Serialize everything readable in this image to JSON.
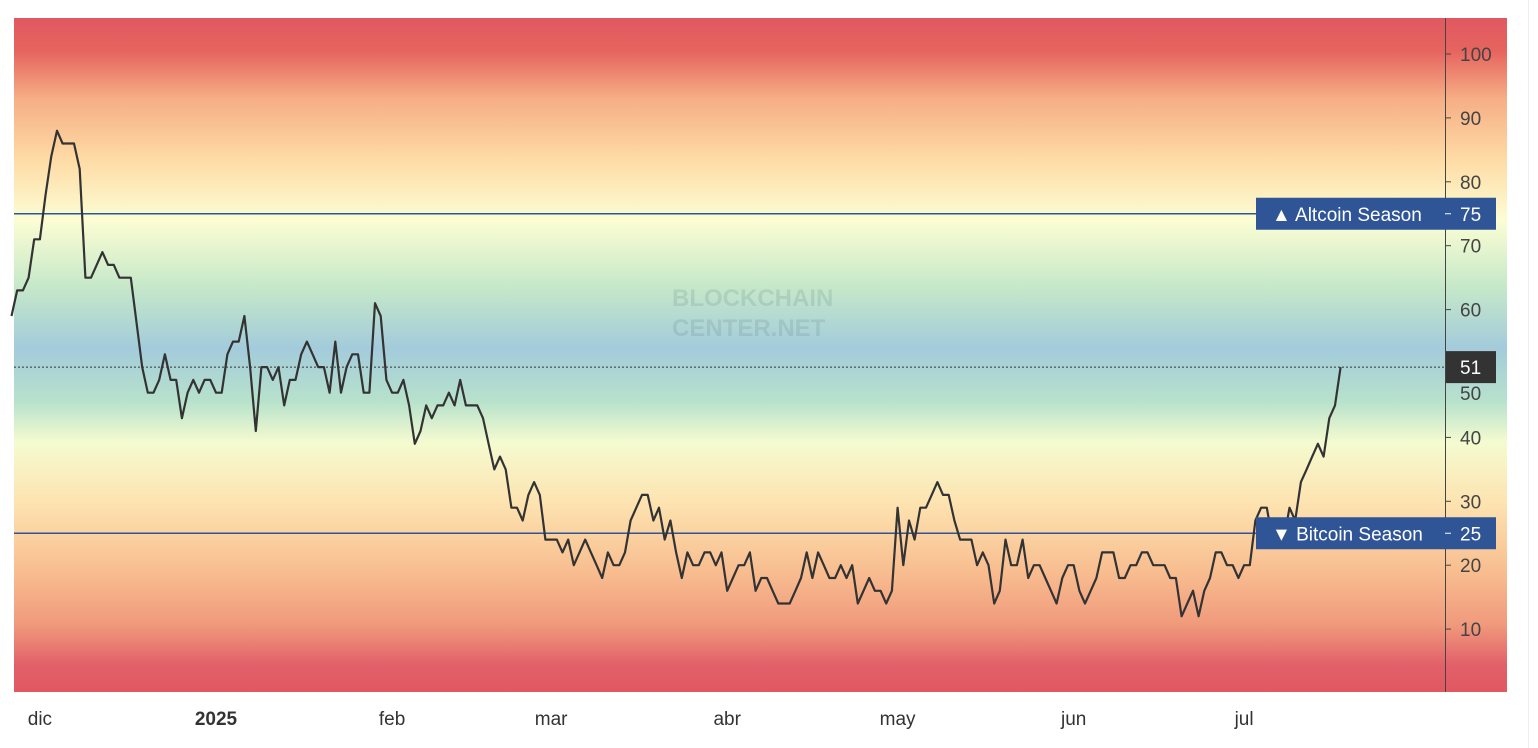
{
  "chart_data": {
    "type": "line",
    "title": "",
    "xlabel": "",
    "ylabel": "",
    "ylim": [
      0,
      105
    ],
    "y_ticks": [
      10,
      20,
      30,
      40,
      50,
      60,
      70,
      80,
      90,
      100
    ],
    "y_tick_labels": [
      "10",
      "20",
      "30",
      "40",
      "50",
      "60",
      "70",
      "80",
      "90",
      "100"
    ],
    "x_ticks": [
      {
        "date": "2024-12-01",
        "label": "dic",
        "bold": false
      },
      {
        "date": "2025-01-01",
        "label": "2025",
        "bold": true
      },
      {
        "date": "2025-02-01",
        "label": "feb",
        "bold": false
      },
      {
        "date": "2025-03-01",
        "label": "mar",
        "bold": false
      },
      {
        "date": "2025-04-01",
        "label": "abr",
        "bold": false
      },
      {
        "date": "2025-05-01",
        "label": "may",
        "bold": false
      },
      {
        "date": "2025-06-01",
        "label": "jun",
        "bold": false
      },
      {
        "date": "2025-07-01",
        "label": "jul",
        "bold": false
      }
    ],
    "grid": false,
    "background": "red-yellow-green-blue gradient bands",
    "reference_lines": [
      {
        "value": 75,
        "label": "▲ Altcoin Season",
        "value_label": "75",
        "color": "#2f5597"
      },
      {
        "value": 25,
        "label": "▼ Bitcoin Season",
        "value_label": "25",
        "color": "#2f5597"
      }
    ],
    "current_value": {
      "value": 51,
      "label": "51",
      "color": "#333333"
    },
    "line_color": "#333333",
    "watermark": "BLOCKCHAIN CENTER.NET",
    "points": [
      [
        "2024-11-26",
        59
      ],
      [
        "2024-11-27",
        63
      ],
      [
        "2024-11-28",
        63
      ],
      [
        "2024-11-29",
        65
      ],
      [
        "2024-11-30",
        71
      ],
      [
        "2024-12-01",
        71
      ],
      [
        "2024-12-02",
        78
      ],
      [
        "2024-12-03",
        84
      ],
      [
        "2024-12-04",
        88
      ],
      [
        "2024-12-05",
        86
      ],
      [
        "2024-12-06",
        86
      ],
      [
        "2024-12-07",
        86
      ],
      [
        "2024-12-08",
        82
      ],
      [
        "2024-12-09",
        65
      ],
      [
        "2024-12-10",
        65
      ],
      [
        "2024-12-11",
        67
      ],
      [
        "2024-12-12",
        69
      ],
      [
        "2024-12-13",
        67
      ],
      [
        "2024-12-14",
        67
      ],
      [
        "2024-12-15",
        65
      ],
      [
        "2024-12-16",
        65
      ],
      [
        "2024-12-17",
        65
      ],
      [
        "2024-12-18",
        58
      ],
      [
        "2024-12-19",
        51
      ],
      [
        "2024-12-20",
        47
      ],
      [
        "2024-12-21",
        47
      ],
      [
        "2024-12-22",
        49
      ],
      [
        "2024-12-23",
        53
      ],
      [
        "2024-12-24",
        49
      ],
      [
        "2024-12-25",
        49
      ],
      [
        "2024-12-26",
        43
      ],
      [
        "2024-12-27",
        47
      ],
      [
        "2024-12-28",
        49
      ],
      [
        "2024-12-29",
        47
      ],
      [
        "2024-12-30",
        49
      ],
      [
        "2024-12-31",
        49
      ],
      [
        "2025-01-01",
        47
      ],
      [
        "2025-01-02",
        47
      ],
      [
        "2025-01-03",
        53
      ],
      [
        "2025-01-04",
        55
      ],
      [
        "2025-01-05",
        55
      ],
      [
        "2025-01-06",
        59
      ],
      [
        "2025-01-07",
        51
      ],
      [
        "2025-01-08",
        41
      ],
      [
        "2025-01-09",
        51
      ],
      [
        "2025-01-10",
        51
      ],
      [
        "2025-01-11",
        49
      ],
      [
        "2025-01-12",
        51
      ],
      [
        "2025-01-13",
        45
      ],
      [
        "2025-01-14",
        49
      ],
      [
        "2025-01-15",
        49
      ],
      [
        "2025-01-16",
        53
      ],
      [
        "2025-01-17",
        55
      ],
      [
        "2025-01-18",
        53
      ],
      [
        "2025-01-19",
        51
      ],
      [
        "2025-01-20",
        51
      ],
      [
        "2025-01-21",
        47
      ],
      [
        "2025-01-22",
        55
      ],
      [
        "2025-01-23",
        47
      ],
      [
        "2025-01-24",
        51
      ],
      [
        "2025-01-25",
        53
      ],
      [
        "2025-01-26",
        53
      ],
      [
        "2025-01-27",
        47
      ],
      [
        "2025-01-28",
        47
      ],
      [
        "2025-01-29",
        61
      ],
      [
        "2025-01-30",
        59
      ],
      [
        "2025-01-31",
        49
      ],
      [
        "2025-02-01",
        47
      ],
      [
        "2025-02-02",
        47
      ],
      [
        "2025-02-03",
        49
      ],
      [
        "2025-02-04",
        45
      ],
      [
        "2025-02-05",
        39
      ],
      [
        "2025-02-06",
        41
      ],
      [
        "2025-02-07",
        45
      ],
      [
        "2025-02-08",
        43
      ],
      [
        "2025-02-09",
        45
      ],
      [
        "2025-02-10",
        45
      ],
      [
        "2025-02-11",
        47
      ],
      [
        "2025-02-12",
        45
      ],
      [
        "2025-02-13",
        49
      ],
      [
        "2025-02-14",
        45
      ],
      [
        "2025-02-15",
        45
      ],
      [
        "2025-02-16",
        45
      ],
      [
        "2025-02-17",
        43
      ],
      [
        "2025-02-18",
        39
      ],
      [
        "2025-02-19",
        35
      ],
      [
        "2025-02-20",
        37
      ],
      [
        "2025-02-21",
        35
      ],
      [
        "2025-02-22",
        29
      ],
      [
        "2025-02-23",
        29
      ],
      [
        "2025-02-24",
        27
      ],
      [
        "2025-02-25",
        31
      ],
      [
        "2025-02-26",
        33
      ],
      [
        "2025-02-27",
        31
      ],
      [
        "2025-02-28",
        24
      ],
      [
        "2025-03-01",
        24
      ],
      [
        "2025-03-02",
        24
      ],
      [
        "2025-03-03",
        22
      ],
      [
        "2025-03-04",
        24
      ],
      [
        "2025-03-05",
        20
      ],
      [
        "2025-03-06",
        22
      ],
      [
        "2025-03-07",
        24
      ],
      [
        "2025-03-08",
        22
      ],
      [
        "2025-03-09",
        20
      ],
      [
        "2025-03-10",
        18
      ],
      [
        "2025-03-11",
        22
      ],
      [
        "2025-03-12",
        20
      ],
      [
        "2025-03-13",
        20
      ],
      [
        "2025-03-14",
        22
      ],
      [
        "2025-03-15",
        27
      ],
      [
        "2025-03-16",
        29
      ],
      [
        "2025-03-17",
        31
      ],
      [
        "2025-03-18",
        31
      ],
      [
        "2025-03-19",
        27
      ],
      [
        "2025-03-20",
        29
      ],
      [
        "2025-03-21",
        24
      ],
      [
        "2025-03-22",
        27
      ],
      [
        "2025-03-23",
        22
      ],
      [
        "2025-03-24",
        18
      ],
      [
        "2025-03-25",
        22
      ],
      [
        "2025-03-26",
        20
      ],
      [
        "2025-03-27",
        20
      ],
      [
        "2025-03-28",
        22
      ],
      [
        "2025-03-29",
        22
      ],
      [
        "2025-03-30",
        20
      ],
      [
        "2025-03-31",
        22
      ],
      [
        "2025-04-01",
        16
      ],
      [
        "2025-04-02",
        18
      ],
      [
        "2025-04-03",
        20
      ],
      [
        "2025-04-04",
        20
      ],
      [
        "2025-04-05",
        22
      ],
      [
        "2025-04-06",
        16
      ],
      [
        "2025-04-07",
        18
      ],
      [
        "2025-04-08",
        18
      ],
      [
        "2025-04-09",
        16
      ],
      [
        "2025-04-10",
        14
      ],
      [
        "2025-04-11",
        14
      ],
      [
        "2025-04-12",
        14
      ],
      [
        "2025-04-13",
        16
      ],
      [
        "2025-04-14",
        18
      ],
      [
        "2025-04-15",
        22
      ],
      [
        "2025-04-16",
        18
      ],
      [
        "2025-04-17",
        22
      ],
      [
        "2025-04-18",
        20
      ],
      [
        "2025-04-19",
        18
      ],
      [
        "2025-04-20",
        18
      ],
      [
        "2025-04-21",
        20
      ],
      [
        "2025-04-22",
        18
      ],
      [
        "2025-04-23",
        20
      ],
      [
        "2025-04-24",
        14
      ],
      [
        "2025-04-25",
        16
      ],
      [
        "2025-04-26",
        18
      ],
      [
        "2025-04-27",
        16
      ],
      [
        "2025-04-28",
        16
      ],
      [
        "2025-04-29",
        14
      ],
      [
        "2025-04-30",
        16
      ],
      [
        "2025-05-01",
        29
      ],
      [
        "2025-05-02",
        20
      ],
      [
        "2025-05-03",
        27
      ],
      [
        "2025-05-04",
        24
      ],
      [
        "2025-05-05",
        29
      ],
      [
        "2025-05-06",
        29
      ],
      [
        "2025-05-07",
        31
      ],
      [
        "2025-05-08",
        33
      ],
      [
        "2025-05-09",
        31
      ],
      [
        "2025-05-10",
        31
      ],
      [
        "2025-05-11",
        27
      ],
      [
        "2025-05-12",
        24
      ],
      [
        "2025-05-13",
        24
      ],
      [
        "2025-05-14",
        24
      ],
      [
        "2025-05-15",
        20
      ],
      [
        "2025-05-16",
        22
      ],
      [
        "2025-05-17",
        20
      ],
      [
        "2025-05-18",
        14
      ],
      [
        "2025-05-19",
        16
      ],
      [
        "2025-05-20",
        24
      ],
      [
        "2025-05-21",
        20
      ],
      [
        "2025-05-22",
        20
      ],
      [
        "2025-05-23",
        24
      ],
      [
        "2025-05-24",
        18
      ],
      [
        "2025-05-25",
        20
      ],
      [
        "2025-05-26",
        20
      ],
      [
        "2025-05-27",
        18
      ],
      [
        "2025-05-28",
        16
      ],
      [
        "2025-05-29",
        14
      ],
      [
        "2025-05-30",
        18
      ],
      [
        "2025-05-31",
        20
      ],
      [
        "2025-06-01",
        20
      ],
      [
        "2025-06-02",
        16
      ],
      [
        "2025-06-03",
        14
      ],
      [
        "2025-06-04",
        16
      ],
      [
        "2025-06-05",
        18
      ],
      [
        "2025-06-06",
        22
      ],
      [
        "2025-06-07",
        22
      ],
      [
        "2025-06-08",
        22
      ],
      [
        "2025-06-09",
        18
      ],
      [
        "2025-06-10",
        18
      ],
      [
        "2025-06-11",
        20
      ],
      [
        "2025-06-12",
        20
      ],
      [
        "2025-06-13",
        22
      ],
      [
        "2025-06-14",
        22
      ],
      [
        "2025-06-15",
        20
      ],
      [
        "2025-06-16",
        20
      ],
      [
        "2025-06-17",
        20
      ],
      [
        "2025-06-18",
        18
      ],
      [
        "2025-06-19",
        18
      ],
      [
        "2025-06-20",
        12
      ],
      [
        "2025-06-21",
        14
      ],
      [
        "2025-06-22",
        16
      ],
      [
        "2025-06-23",
        12
      ],
      [
        "2025-06-24",
        16
      ],
      [
        "2025-06-25",
        18
      ],
      [
        "2025-06-26",
        22
      ],
      [
        "2025-06-27",
        22
      ],
      [
        "2025-06-28",
        20
      ],
      [
        "2025-06-29",
        20
      ],
      [
        "2025-06-30",
        18
      ],
      [
        "2025-07-01",
        20
      ],
      [
        "2025-07-02",
        20
      ],
      [
        "2025-07-03",
        27
      ],
      [
        "2025-07-04",
        29
      ],
      [
        "2025-07-05",
        29
      ],
      [
        "2025-07-06",
        24
      ],
      [
        "2025-07-07",
        27
      ],
      [
        "2025-07-08",
        24
      ],
      [
        "2025-07-09",
        29
      ],
      [
        "2025-07-10",
        27
      ],
      [
        "2025-07-11",
        33
      ],
      [
        "2025-07-12",
        35
      ],
      [
        "2025-07-13",
        37
      ],
      [
        "2025-07-14",
        39
      ],
      [
        "2025-07-15",
        37
      ],
      [
        "2025-07-16",
        43
      ],
      [
        "2025-07-17",
        45
      ],
      [
        "2025-07-18",
        51
      ]
    ]
  }
}
